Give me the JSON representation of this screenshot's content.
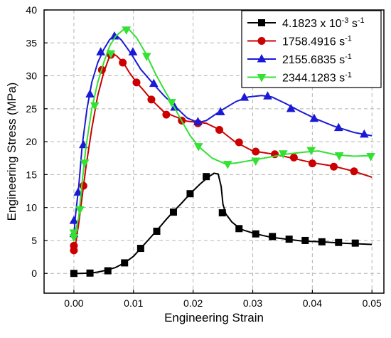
{
  "chart_data": {
    "type": "line",
    "xlabel": "Engineering Strain",
    "ylabel": "Engineering Stress (MPa)",
    "xlim": [
      -0.005,
      0.052
    ],
    "ylim": [
      -3,
      40
    ],
    "xticks": [
      0.0,
      0.01,
      0.02,
      0.03,
      0.04,
      0.05
    ],
    "xtick_labels": [
      "0.00",
      "0.01",
      "0.02",
      "0.03",
      "0.04",
      "0.05"
    ],
    "yticks": [
      0,
      5,
      10,
      15,
      20,
      25,
      30,
      35,
      40
    ],
    "ytick_labels": [
      "0",
      "5",
      "10",
      "15",
      "20",
      "25",
      "30",
      "35",
      "40"
    ],
    "grid": true,
    "legend_position": "top-right",
    "series": [
      {
        "name": "4.1823 x 10",
        "name_sup": "-3",
        "name_suffix": " s",
        "name_suffix_sup": "-1",
        "color": "#000000",
        "marker": "square",
        "line": [
          [
            0.0,
            0.0
          ],
          [
            0.001,
            0.0
          ],
          [
            0.0027,
            0.05
          ],
          [
            0.004,
            0.2
          ],
          [
            0.0055,
            0.5
          ],
          [
            0.007,
            0.9
          ],
          [
            0.0085,
            1.6
          ],
          [
            0.01,
            2.6
          ],
          [
            0.0112,
            3.8
          ],
          [
            0.0125,
            5.1
          ],
          [
            0.014,
            6.6
          ],
          [
            0.0155,
            8.2
          ],
          [
            0.0167,
            9.4
          ],
          [
            0.018,
            10.6
          ],
          [
            0.0195,
            12.1
          ],
          [
            0.0212,
            13.6
          ],
          [
            0.0225,
            14.6
          ],
          [
            0.0235,
            15.2
          ],
          [
            0.0242,
            15.1
          ],
          [
            0.0247,
            13.2
          ],
          [
            0.025,
            10.5
          ],
          [
            0.0255,
            9.0
          ],
          [
            0.0265,
            7.8
          ],
          [
            0.028,
            6.7
          ],
          [
            0.0305,
            6.0
          ],
          [
            0.033,
            5.5
          ],
          [
            0.0365,
            5.1
          ],
          [
            0.0385,
            4.9
          ],
          [
            0.0415,
            4.8
          ],
          [
            0.045,
            4.6
          ],
          [
            0.0475,
            4.5
          ],
          [
            0.05,
            4.4
          ]
        ],
        "markers": [
          [
            0.0,
            0.0
          ],
          [
            0.0027,
            0.05
          ],
          [
            0.0057,
            0.4
          ],
          [
            0.0085,
            1.6
          ],
          [
            0.0112,
            3.8
          ],
          [
            0.0139,
            6.4
          ],
          [
            0.0167,
            9.3
          ],
          [
            0.0195,
            12.1
          ],
          [
            0.0222,
            14.7
          ],
          [
            0.0249,
            9.2
          ],
          [
            0.0277,
            6.8
          ],
          [
            0.0305,
            6.0
          ],
          [
            0.0333,
            5.6
          ],
          [
            0.0361,
            5.2
          ],
          [
            0.0388,
            5.0
          ],
          [
            0.0416,
            4.8
          ],
          [
            0.0444,
            4.7
          ],
          [
            0.0472,
            4.6
          ]
        ]
      },
      {
        "name": "1758.4916",
        "name_suffix": " s",
        "name_suffix_sup": "-1",
        "color": "#cc0000",
        "marker": "circle",
        "line": [
          [
            0.0,
            3.3
          ],
          [
            0.0003,
            4.5
          ],
          [
            0.0008,
            7.5
          ],
          [
            0.0013,
            11.0
          ],
          [
            0.002,
            16.0
          ],
          [
            0.003,
            22.0
          ],
          [
            0.004,
            27.0
          ],
          [
            0.005,
            30.5
          ],
          [
            0.006,
            33.0
          ],
          [
            0.0065,
            33.4
          ],
          [
            0.0072,
            33.0
          ],
          [
            0.0083,
            32.0
          ],
          [
            0.0093,
            30.5
          ],
          [
            0.0105,
            29.0
          ],
          [
            0.0115,
            28.0
          ],
          [
            0.013,
            26.4
          ],
          [
            0.015,
            24.6
          ],
          [
            0.0167,
            23.9
          ],
          [
            0.019,
            23.1
          ],
          [
            0.0222,
            22.8
          ],
          [
            0.0245,
            21.8
          ],
          [
            0.027,
            20.0
          ],
          [
            0.03,
            18.6
          ],
          [
            0.0335,
            18.1
          ],
          [
            0.0367,
            17.5
          ],
          [
            0.04,
            16.8
          ],
          [
            0.0435,
            16.3
          ],
          [
            0.047,
            15.5
          ],
          [
            0.05,
            14.6
          ]
        ],
        "markers": [
          [
            0.0,
            3.5
          ],
          [
            0.0,
            4.2
          ],
          [
            0.0016,
            13.3
          ],
          [
            0.0047,
            30.9
          ],
          [
            0.0062,
            33.2
          ],
          [
            0.0082,
            32.0
          ],
          [
            0.0105,
            29.0
          ],
          [
            0.013,
            26.4
          ],
          [
            0.0155,
            24.1
          ],
          [
            0.0181,
            23.2
          ],
          [
            0.0208,
            22.8
          ],
          [
            0.0244,
            21.8
          ],
          [
            0.0277,
            19.9
          ],
          [
            0.0305,
            18.5
          ],
          [
            0.0337,
            18.1
          ],
          [
            0.0369,
            17.6
          ],
          [
            0.04,
            16.7
          ],
          [
            0.0436,
            16.2
          ],
          [
            0.047,
            15.5
          ]
        ]
      },
      {
        "name": "2155.6835",
        "name_suffix": " s",
        "name_suffix_sup": "-1",
        "color": "#1a1ad6",
        "marker": "triangle-up",
        "line": [
          [
            0.0,
            5.8
          ],
          [
            0.0003,
            9.0
          ],
          [
            0.0008,
            13.0
          ],
          [
            0.0014,
            19.5
          ],
          [
            0.0022,
            25.0
          ],
          [
            0.003,
            29.0
          ],
          [
            0.004,
            32.0
          ],
          [
            0.005,
            34.0
          ],
          [
            0.006,
            35.5
          ],
          [
            0.0068,
            36.2
          ],
          [
            0.0073,
            36.0
          ],
          [
            0.008,
            35.4
          ],
          [
            0.0095,
            33.5
          ],
          [
            0.0112,
            31.0
          ],
          [
            0.0133,
            28.8
          ],
          [
            0.0151,
            27.0
          ],
          [
            0.0168,
            25.5
          ],
          [
            0.019,
            23.6
          ],
          [
            0.0208,
            22.9
          ],
          [
            0.0222,
            23.2
          ],
          [
            0.0248,
            24.8
          ],
          [
            0.0272,
            26.1
          ],
          [
            0.0293,
            26.8
          ],
          [
            0.0315,
            27.0
          ],
          [
            0.0332,
            26.8
          ],
          [
            0.0355,
            25.8
          ],
          [
            0.0378,
            24.7
          ],
          [
            0.0405,
            23.5
          ],
          [
            0.0435,
            22.4
          ],
          [
            0.047,
            21.4
          ],
          [
            0.05,
            20.9
          ]
        ],
        "markers": [
          [
            0.0,
            6.0
          ],
          [
            0.0,
            8.0
          ],
          [
            0.0007,
            12.3
          ],
          [
            0.0016,
            19.5
          ],
          [
            0.0027,
            27.2
          ],
          [
            0.0045,
            33.6
          ],
          [
            0.0068,
            36.0
          ],
          [
            0.0099,
            33.6
          ],
          [
            0.0134,
            28.8
          ],
          [
            0.0169,
            25.2
          ],
          [
            0.0208,
            23.0
          ],
          [
            0.0246,
            24.5
          ],
          [
            0.0286,
            26.7
          ],
          [
            0.0325,
            26.9
          ],
          [
            0.0364,
            25.0
          ],
          [
            0.0403,
            23.5
          ],
          [
            0.0444,
            22.1
          ],
          [
            0.0487,
            21.1
          ]
        ]
      },
      {
        "name": "2344.1283",
        "name_suffix": " s",
        "name_suffix_sup": "-1",
        "color": "#33e133",
        "marker": "triangle-down",
        "line": [
          [
            0.0,
            5.5
          ],
          [
            0.0003,
            6.5
          ],
          [
            0.0008,
            8.5
          ],
          [
            0.0014,
            14.0
          ],
          [
            0.002,
            19.0
          ],
          [
            0.003,
            25.0
          ],
          [
            0.004,
            29.0
          ],
          [
            0.005,
            32.0
          ],
          [
            0.006,
            34.5
          ],
          [
            0.007,
            36.0
          ],
          [
            0.0083,
            37.0
          ],
          [
            0.0093,
            37.0
          ],
          [
            0.0105,
            35.8
          ],
          [
            0.012,
            33.5
          ],
          [
            0.0137,
            30.3
          ],
          [
            0.0152,
            27.8
          ],
          [
            0.0165,
            25.8
          ],
          [
            0.018,
            23.3
          ],
          [
            0.0195,
            20.9
          ],
          [
            0.021,
            19.2
          ],
          [
            0.0232,
            17.5
          ],
          [
            0.0255,
            16.6
          ],
          [
            0.0275,
            16.8
          ],
          [
            0.03,
            17.2
          ],
          [
            0.0325,
            17.6
          ],
          [
            0.0355,
            18.1
          ],
          [
            0.0385,
            18.4
          ],
          [
            0.041,
            18.6
          ],
          [
            0.044,
            18.0
          ],
          [
            0.047,
            17.8
          ],
          [
            0.05,
            17.9
          ]
        ],
        "markers": [
          [
            0.0,
            5.5
          ],
          [
            0.0,
            6.2
          ],
          [
            0.001,
            9.7
          ],
          [
            0.0018,
            16.8
          ],
          [
            0.0035,
            25.5
          ],
          [
            0.0062,
            33.4
          ],
          [
            0.0088,
            37.0
          ],
          [
            0.0122,
            33.0
          ],
          [
            0.0164,
            26.0
          ],
          [
            0.0209,
            19.3
          ],
          [
            0.0258,
            16.6
          ],
          [
            0.0305,
            17.1
          ],
          [
            0.0351,
            18.2
          ],
          [
            0.0398,
            18.7
          ],
          [
            0.0445,
            17.9
          ],
          [
            0.0498,
            17.8
          ]
        ]
      }
    ]
  }
}
